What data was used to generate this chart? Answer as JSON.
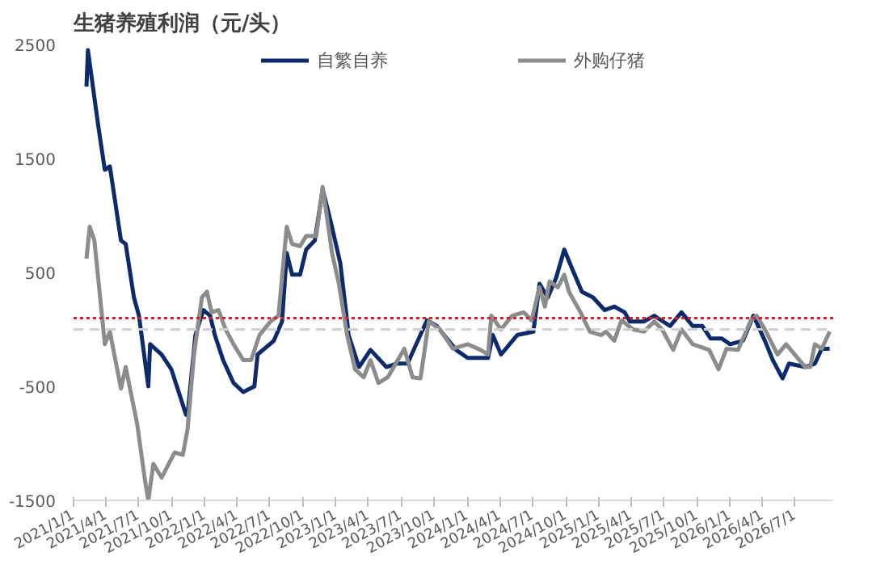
{
  "chart_data": {
    "type": "line",
    "title": "生猪养殖利润（元/头）",
    "legend": "top",
    "grid": false,
    "line_style": "solid",
    "marker": "none",
    "xlim": [
      "2021-01-01",
      "2026-10-15"
    ],
    "ylim": [
      -1500,
      2500
    ],
    "yticks": [
      -1500,
      -500,
      500,
      1500,
      2500
    ],
    "xticks": [
      {
        "value": "2021-01-01",
        "label": "2021/1/1"
      },
      {
        "value": "2021-04-01",
        "label": "2021/4/1"
      },
      {
        "value": "2021-07-01",
        "label": "2021/7/1"
      },
      {
        "value": "2021-10-01",
        "label": "2021/10/1"
      },
      {
        "value": "2022-01-01",
        "label": "2022/1/1"
      },
      {
        "value": "2022-04-01",
        "label": "2022/4/1"
      },
      {
        "value": "2022-07-01",
        "label": "2022/7/1"
      },
      {
        "value": "2022-10-01",
        "label": "2022/10/1"
      },
      {
        "value": "2023-01-01",
        "label": "2023/1/1"
      },
      {
        "value": "2023-04-01",
        "label": "2023/4/1"
      },
      {
        "value": "2023-07-01",
        "label": "2023/7/1"
      },
      {
        "value": "2023-10-01",
        "label": "2023/10/1"
      },
      {
        "value": "2024-01-01",
        "label": "2024/1/1"
      },
      {
        "value": "2024-04-01",
        "label": "2024/4/1"
      },
      {
        "value": "2024-07-01",
        "label": "2024/7/1"
      },
      {
        "value": "2024-10-01",
        "label": "2024/10/1"
      },
      {
        "value": "2025-01-01",
        "label": "2025/1/1"
      },
      {
        "value": "2025-04-01",
        "label": "2025/4/1"
      },
      {
        "value": "2025-07-01",
        "label": "2025/7/1"
      },
      {
        "value": "2025-10-01",
        "label": "2025/10/1"
      },
      {
        "value": "2026-01-01",
        "label": "2026/1/1"
      },
      {
        "value": "2026-04-01",
        "label": "2026/4/1"
      },
      {
        "value": "2026-07-01",
        "label": "2026/7/1"
      }
    ],
    "ref_lines": [
      {
        "axis": "y",
        "value": 100,
        "color": "#e02020",
        "line_style": "dotted"
      },
      {
        "axis": "y",
        "value": 0,
        "color": "#d0d0d0",
        "line_style": "dashed"
      }
    ],
    "series": [
      {
        "name": "自繁自养",
        "color": "#0d2a6b",
        "x": [
          "2021-02-06",
          "2021-02-10",
          "2021-03-11",
          "2021-03-29",
          "2021-04-12",
          "2021-05-13",
          "2021-05-26",
          "2021-06-18",
          "2021-07-02",
          "2021-07-28",
          "2021-08-02",
          "2021-09-03",
          "2021-09-30",
          "2021-11-10",
          "2021-11-14",
          "2021-12-06",
          "2021-12-28",
          "2022-01-16",
          "2022-01-29",
          "2022-02-21",
          "2022-03-22",
          "2022-04-18",
          "2022-05-19",
          "2022-05-28",
          "2022-07-12",
          "2022-08-04",
          "2022-08-17",
          "2022-09-01",
          "2022-09-23",
          "2022-10-10",
          "2022-11-03",
          "2022-11-25",
          "2022-12-17",
          "2023-01-13",
          "2023-02-01",
          "2023-02-05",
          "2023-03-06",
          "2023-04-07",
          "2023-05-21",
          "2023-06-18",
          "2023-07-19",
          "2023-09-11",
          "2023-10-08",
          "2023-12-01",
          "2024-01-02",
          "2024-01-28",
          "2024-02-28",
          "2024-03-12",
          "2024-04-04",
          "2024-05-19",
          "2024-07-03",
          "2024-07-20",
          "2024-08-12",
          "2024-09-04",
          "2024-09-27",
          "2024-10-19",
          "2024-11-15",
          "2024-12-16",
          "2025-01-17",
          "2025-02-13",
          "2025-03-14",
          "2025-03-28",
          "2025-05-07",
          "2025-06-04",
          "2025-07-18",
          "2025-08-19",
          "2025-09-19",
          "2025-10-16",
          "2025-11-08",
          "2025-12-09",
          "2026-01-01",
          "2026-02-06",
          "2026-03-07",
          "2026-04-08",
          "2026-04-30",
          "2026-05-27",
          "2026-06-14",
          "2026-07-29",
          "2026-08-25",
          "2026-09-13",
          "2026-10-05"
        ],
        "values": [
          2130,
          2450,
          1780,
          1400,
          1430,
          780,
          750,
          280,
          120,
          -500,
          -130,
          -220,
          -350,
          -750,
          -750,
          -50,
          170,
          120,
          -50,
          -270,
          -470,
          -550,
          -500,
          -220,
          -100,
          70,
          670,
          480,
          480,
          700,
          780,
          1230,
          950,
          580,
          70,
          -50,
          -330,
          -180,
          -330,
          -300,
          -300,
          80,
          30,
          -180,
          -250,
          -250,
          -250,
          -50,
          -220,
          -50,
          -20,
          400,
          280,
          450,
          700,
          530,
          330,
          280,
          170,
          200,
          150,
          70,
          70,
          120,
          30,
          150,
          30,
          30,
          -80,
          -80,
          -130,
          -100,
          120,
          -100,
          -270,
          -430,
          -300,
          -330,
          -300,
          -170,
          -170
        ]
      },
      {
        "name": "外购仔猪",
        "color": "#8c8c8c",
        "x": [
          "2021-02-06",
          "2021-02-15",
          "2021-02-28",
          "2021-03-29",
          "2021-04-12",
          "2021-05-13",
          "2021-05-26",
          "2021-06-27",
          "2021-07-19",
          "2021-07-28",
          "2021-08-11",
          "2021-09-03",
          "2021-10-09",
          "2021-11-01",
          "2021-11-14",
          "2021-12-02",
          "2021-12-24",
          "2022-01-07",
          "2022-01-20",
          "2022-02-08",
          "2022-02-28",
          "2022-03-22",
          "2022-04-18",
          "2022-05-10",
          "2022-06-02",
          "2022-07-03",
          "2022-07-25",
          "2022-08-17",
          "2022-09-01",
          "2022-09-23",
          "2022-10-10",
          "2022-11-07",
          "2022-11-25",
          "2022-12-21",
          "2023-01-09",
          "2023-02-01",
          "2023-02-23",
          "2023-03-19",
          "2023-04-07",
          "2023-04-29",
          "2023-05-25",
          "2023-07-10",
          "2023-08-02",
          "2023-08-24",
          "2023-09-16",
          "2023-10-17",
          "2023-11-22",
          "2024-01-02",
          "2024-02-07",
          "2024-02-28",
          "2024-03-08",
          "2024-04-04",
          "2024-05-05",
          "2024-06-06",
          "2024-06-28",
          "2024-07-20",
          "2024-08-04",
          "2024-08-17",
          "2024-09-09",
          "2024-09-27",
          "2024-10-10",
          "2024-11-11",
          "2024-12-07",
          "2025-01-08",
          "2025-01-21",
          "2025-02-13",
          "2025-03-05",
          "2025-04-06",
          "2025-05-07",
          "2025-06-04",
          "2025-06-26",
          "2025-07-27",
          "2025-08-19",
          "2025-09-19",
          "2025-11-04",
          "2025-11-30",
          "2025-12-22",
          "2026-01-23",
          "2026-02-28",
          "2026-03-16",
          "2026-04-08",
          "2026-05-13",
          "2026-06-06",
          "2026-07-29",
          "2026-08-12",
          "2026-08-25",
          "2026-09-13",
          "2026-10-05"
        ],
        "values": [
          620,
          900,
          780,
          -130,
          -20,
          -520,
          -330,
          -830,
          -1330,
          -1500,
          -1180,
          -1300,
          -1080,
          -1100,
          -880,
          -220,
          280,
          330,
          150,
          170,
          0,
          -130,
          -270,
          -270,
          -50,
          70,
          120,
          900,
          750,
          730,
          820,
          820,
          1250,
          670,
          400,
          -50,
          -350,
          -420,
          -270,
          -470,
          -420,
          -170,
          -420,
          -430,
          70,
          0,
          -170,
          -130,
          -180,
          -220,
          120,
          0,
          120,
          150,
          80,
          370,
          200,
          420,
          370,
          480,
          330,
          150,
          -20,
          -50,
          -20,
          -100,
          80,
          0,
          -20,
          70,
          0,
          -180,
          0,
          -130,
          -180,
          -350,
          -170,
          -180,
          80,
          120,
          0,
          -220,
          -130,
          -330,
          -330,
          -130,
          -170,
          -20
        ]
      }
    ]
  }
}
